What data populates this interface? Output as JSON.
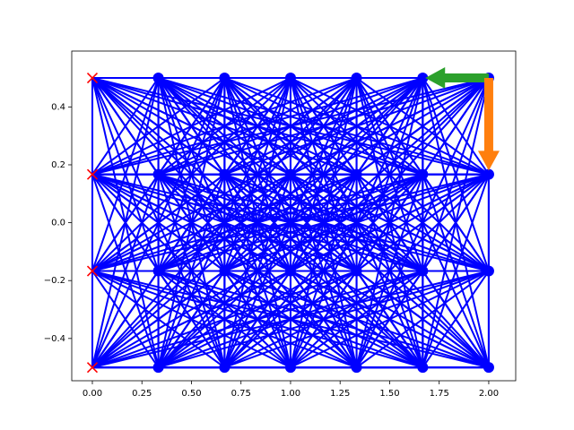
{
  "chart_data": {
    "type": "network",
    "fully_connected": true,
    "edge_color": "#0000ff",
    "series": [
      {
        "marker": "x",
        "color": "#ff0000",
        "x": [
          0,
          0,
          0,
          0
        ],
        "values": [
          -0.5,
          -0.167,
          0.167,
          0.5
        ]
      },
      {
        "marker": "o",
        "color": "#0000ff",
        "x": [
          0.333,
          0.333,
          0.333,
          0.333,
          0.667,
          0.667,
          0.667,
          0.667,
          1,
          1,
          1,
          1,
          1.333,
          1.333,
          1.333,
          1.333,
          1.667,
          1.667,
          1.667,
          1.667,
          2,
          2,
          2,
          2
        ],
        "values": [
          -0.5,
          -0.167,
          0.167,
          0.5,
          -0.5,
          -0.167,
          0.167,
          0.5,
          -0.5,
          -0.167,
          0.167,
          0.5,
          -0.5,
          -0.167,
          0.167,
          0.5,
          -0.5,
          -0.167,
          0.167,
          0.5,
          -0.5,
          -0.167,
          0.167,
          0.5
        ]
      }
    ],
    "arrows": [
      {
        "x": 2,
        "y": 0.5,
        "dx": -0.32,
        "dy": 0,
        "color": "#2ca02c"
      },
      {
        "x": 2,
        "y": 0.5,
        "dx": 0,
        "dy": -0.32,
        "color": "#ff7f0e"
      }
    ],
    "xlim": [
      -0.104,
      2.136
    ],
    "ylim": [
      -0.546,
      0.593
    ],
    "xticks": [
      {
        "value": 0,
        "label": "0.00"
      },
      {
        "value": 0.25,
        "label": "0.25"
      },
      {
        "value": 0.5,
        "label": "0.50"
      },
      {
        "value": 0.75,
        "label": "0.75"
      },
      {
        "value": 1,
        "label": "1.00"
      },
      {
        "value": 1.25,
        "label": "1.25"
      },
      {
        "value": 1.5,
        "label": "1.50"
      },
      {
        "value": 1.75,
        "label": "1.75"
      },
      {
        "value": 2,
        "label": "2.00"
      }
    ],
    "yticks": [
      {
        "value": -0.4,
        "label": "−0.4"
      },
      {
        "value": -0.2,
        "label": "−0.2"
      },
      {
        "value": 0,
        "label": "0.0"
      },
      {
        "value": 0.2,
        "label": "0.2"
      },
      {
        "value": 0.4,
        "label": "0.4"
      }
    ]
  }
}
